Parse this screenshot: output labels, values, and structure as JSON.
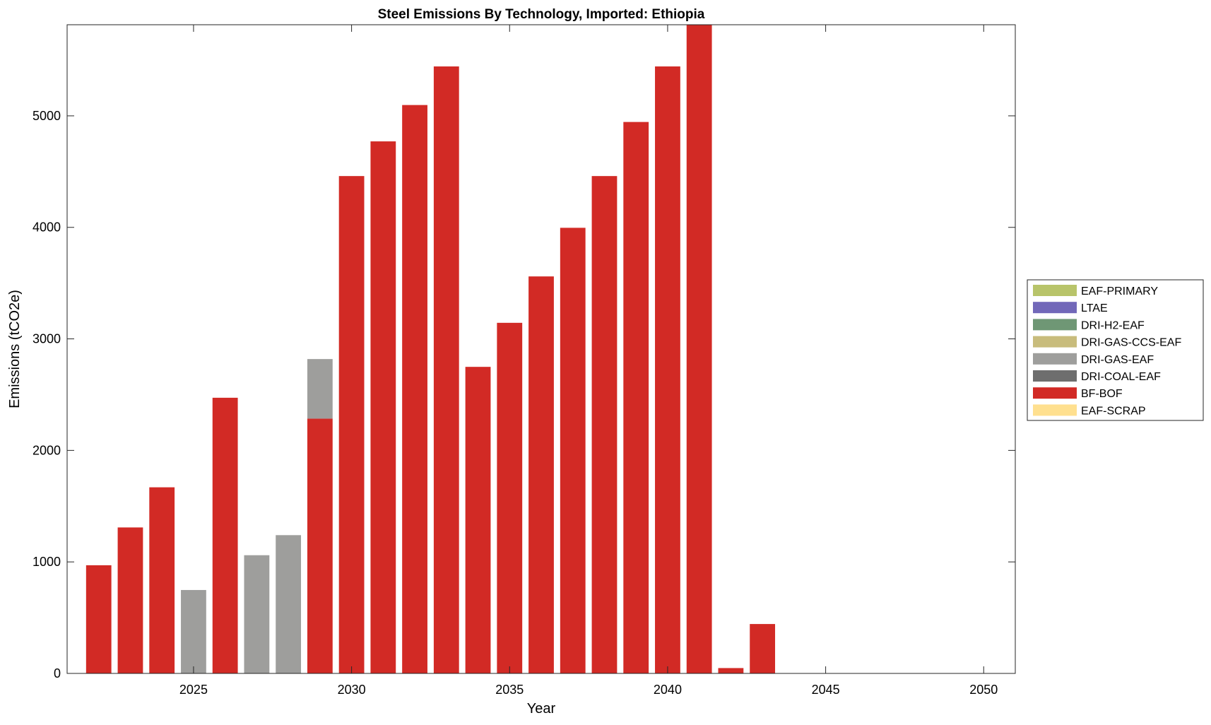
{
  "chart_data": {
    "type": "bar",
    "stacked": true,
    "title": "Steel Emissions By Technology, Imported: Ethiopia",
    "xlabel": "Year",
    "ylabel": "Emissions (tCO2e)",
    "xlim": [
      2021,
      2051
    ],
    "ylim": [
      0,
      5817
    ],
    "xticks": [
      2025,
      2030,
      2035,
      2040,
      2045,
      2050
    ],
    "yticks": [
      0,
      1000,
      2000,
      3000,
      4000,
      5000
    ],
    "grid": false,
    "legend_position": "right",
    "x": [
      2022,
      2023,
      2024,
      2025,
      2026,
      2027,
      2028,
      2029,
      2030,
      2031,
      2032,
      2033,
      2034,
      2035,
      2036,
      2037,
      2038,
      2039,
      2040,
      2041,
      2042,
      2043
    ],
    "series": [
      {
        "name": "EAF-SCRAP",
        "color": "#ffe08f",
        "values": [
          0,
          0,
          0,
          0,
          0,
          0,
          0,
          0,
          0,
          0,
          0,
          0,
          0,
          0,
          0,
          0,
          0,
          0,
          0,
          0,
          0,
          0
        ]
      },
      {
        "name": "BF-BOF",
        "color": "#d22a25",
        "values": [
          970,
          1309,
          1669,
          0,
          2472,
          0,
          0,
          2285,
          4460,
          4771,
          5097,
          5443,
          2749,
          3144,
          3560,
          3996,
          4460,
          4945,
          5443,
          5820,
          48,
          443
        ]
      },
      {
        "name": "DRI-COAL-EAF",
        "color": "#6e6e6e",
        "values": [
          0,
          0,
          0,
          0,
          0,
          0,
          0,
          0,
          0,
          0,
          0,
          0,
          0,
          0,
          0,
          0,
          0,
          0,
          0,
          0,
          0,
          0
        ]
      },
      {
        "name": "DRI-GAS-EAF",
        "color": "#9e9e9c",
        "values": [
          0,
          0,
          0,
          748,
          0,
          1060,
          1240,
          534,
          0,
          0,
          0,
          0,
          0,
          0,
          0,
          0,
          0,
          0,
          0,
          0,
          0,
          0
        ]
      },
      {
        "name": "DRI-GAS-CCS-EAF",
        "color": "#c8bc7c",
        "values": [
          0,
          0,
          0,
          0,
          0,
          0,
          0,
          0,
          0,
          0,
          0,
          0,
          0,
          0,
          0,
          0,
          0,
          0,
          0,
          0,
          0,
          0
        ]
      },
      {
        "name": "DRI-H2-EAF",
        "color": "#6f9775",
        "values": [
          0,
          0,
          0,
          0,
          0,
          0,
          0,
          0,
          0,
          0,
          0,
          0,
          0,
          0,
          0,
          0,
          0,
          0,
          0,
          0,
          0,
          0
        ]
      },
      {
        "name": "LTAE",
        "color": "#7268b9",
        "values": [
          0,
          0,
          0,
          0,
          0,
          0,
          0,
          0,
          0,
          0,
          0,
          0,
          0,
          0,
          0,
          0,
          0,
          0,
          0,
          0,
          0,
          0
        ]
      },
      {
        "name": "EAF-PRIMARY",
        "color": "#b8c46a",
        "values": [
          0,
          0,
          0,
          0,
          0,
          0,
          0,
          0,
          0,
          0,
          0,
          0,
          0,
          0,
          0,
          0,
          0,
          0,
          0,
          0,
          0,
          0
        ]
      }
    ],
    "legend_order": [
      "EAF-PRIMARY",
      "LTAE",
      "DRI-H2-EAF",
      "DRI-GAS-CCS-EAF",
      "DRI-GAS-EAF",
      "DRI-COAL-EAF",
      "BF-BOF",
      "EAF-SCRAP"
    ]
  }
}
